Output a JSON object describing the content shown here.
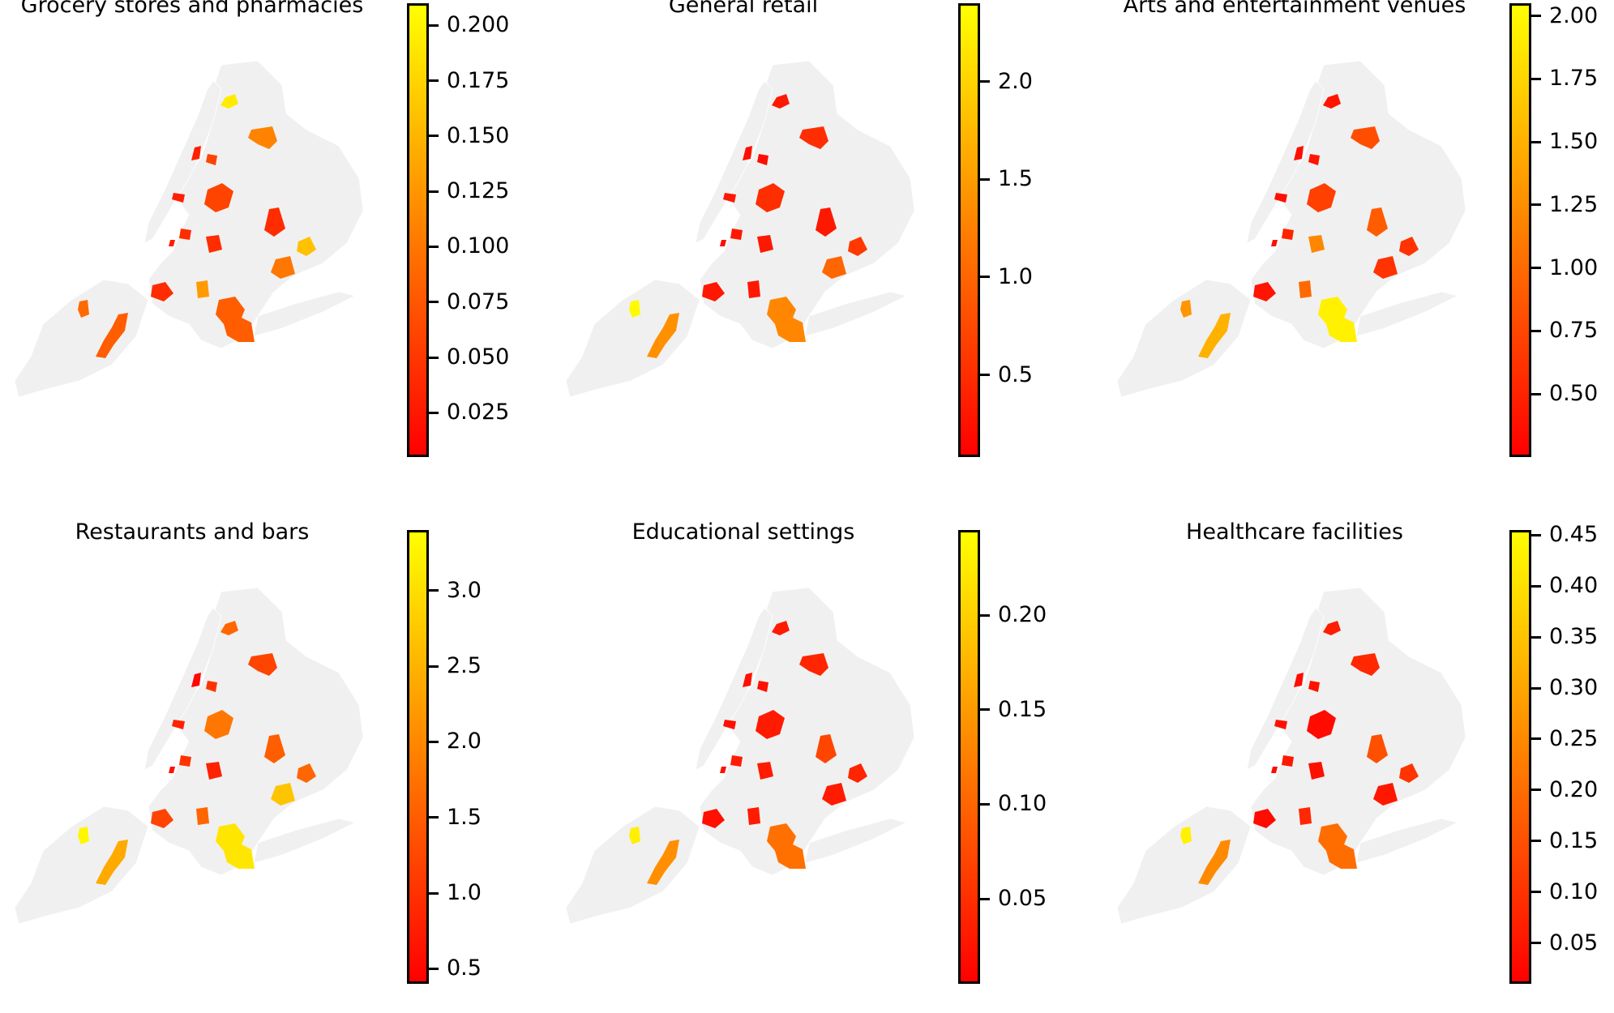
{
  "panels": [
    {
      "title": "Grocery stores and pharmacies",
      "colorbar": {
        "min": 0.005,
        "max": 0.21,
        "ticks": [
          "0.025",
          "0.050",
          "0.075",
          "0.100",
          "0.125",
          "0.150",
          "0.175",
          "0.200"
        ]
      },
      "neighborhoods": [
        {
          "id": "bronx-north",
          "value": 0.195
        },
        {
          "id": "bronx-east",
          "value": 0.11
        },
        {
          "id": "manhattan-upper-w",
          "value": 0.03
        },
        {
          "id": "manhattan-upper-e",
          "value": 0.06
        },
        {
          "id": "manhattan-mid",
          "value": 0.03
        },
        {
          "id": "manhattan-low",
          "value": 0.04
        },
        {
          "id": "queens-west",
          "value": 0.06
        },
        {
          "id": "queens-central",
          "value": 0.04
        },
        {
          "id": "queens-east",
          "value": 0.04
        },
        {
          "id": "queens-southeast",
          "value": 0.16
        },
        {
          "id": "queens-south",
          "value": 0.1
        },
        {
          "id": "brooklyn-nw",
          "value": 0.04
        },
        {
          "id": "brooklyn-central",
          "value": 0.13
        },
        {
          "id": "brooklyn-south",
          "value": 0.08
        },
        {
          "id": "staten-north",
          "value": 0.09
        },
        {
          "id": "staten-east",
          "value": 0.08
        },
        {
          "id": "manhattan-lower-tip",
          "value": 0.03
        }
      ]
    },
    {
      "title": "General retail",
      "colorbar": {
        "min": 0.08,
        "max": 2.4,
        "ticks": [
          "0.5",
          "1.0",
          "1.5",
          "2.0"
        ]
      },
      "neighborhoods": [
        {
          "id": "bronx-north",
          "value": 0.3
        },
        {
          "id": "bronx-east",
          "value": 0.5
        },
        {
          "id": "manhattan-upper-w",
          "value": 0.2
        },
        {
          "id": "manhattan-upper-e",
          "value": 0.2
        },
        {
          "id": "manhattan-mid",
          "value": 0.3
        },
        {
          "id": "manhattan-low",
          "value": 0.3
        },
        {
          "id": "queens-west",
          "value": 0.5
        },
        {
          "id": "queens-central",
          "value": 0.3
        },
        {
          "id": "queens-east",
          "value": 0.3
        },
        {
          "id": "queens-southeast",
          "value": 0.6
        },
        {
          "id": "queens-south",
          "value": 1.0
        },
        {
          "id": "brooklyn-nw",
          "value": 0.3
        },
        {
          "id": "brooklyn-central",
          "value": 0.3
        },
        {
          "id": "brooklyn-south",
          "value": 1.3
        },
        {
          "id": "staten-north",
          "value": 2.35
        },
        {
          "id": "staten-east",
          "value": 1.4
        },
        {
          "id": "manhattan-lower-tip",
          "value": 0.2
        }
      ]
    },
    {
      "title": "Arts and entertainment venues",
      "colorbar": {
        "min": 0.25,
        "max": 2.05,
        "ticks": [
          "0.50",
          "0.75",
          "1.00",
          "1.25",
          "1.50",
          "1.75",
          "2.00"
        ]
      },
      "neighborhoods": [
        {
          "id": "bronx-north",
          "value": 0.4
        },
        {
          "id": "bronx-east",
          "value": 0.8
        },
        {
          "id": "manhattan-upper-w",
          "value": 0.35
        },
        {
          "id": "manhattan-upper-e",
          "value": 0.4
        },
        {
          "id": "manhattan-mid",
          "value": 0.35
        },
        {
          "id": "manhattan-low",
          "value": 0.5
        },
        {
          "id": "queens-west",
          "value": 0.7
        },
        {
          "id": "queens-central",
          "value": 1.2
        },
        {
          "id": "queens-east",
          "value": 0.9
        },
        {
          "id": "queens-southeast",
          "value": 0.6
        },
        {
          "id": "queens-south",
          "value": 0.6
        },
        {
          "id": "brooklyn-nw",
          "value": 0.4
        },
        {
          "id": "brooklyn-central",
          "value": 1.0
        },
        {
          "id": "brooklyn-south",
          "value": 1.95
        },
        {
          "id": "staten-north",
          "value": 1.3
        },
        {
          "id": "staten-east",
          "value": 1.5
        },
        {
          "id": "manhattan-lower-tip",
          "value": 0.35
        }
      ]
    },
    {
      "title": "Restaurants and bars",
      "colorbar": {
        "min": 0.4,
        "max": 3.4,
        "ticks": [
          "0.5",
          "1.0",
          "1.5",
          "2.0",
          "2.5",
          "3.0"
        ]
      },
      "neighborhoods": [
        {
          "id": "bronx-north",
          "value": 1.6
        },
        {
          "id": "bronx-east",
          "value": 1.2
        },
        {
          "id": "manhattan-upper-w",
          "value": 0.5
        },
        {
          "id": "manhattan-upper-e",
          "value": 1.0
        },
        {
          "id": "manhattan-mid",
          "value": 0.8
        },
        {
          "id": "manhattan-low",
          "value": 1.0
        },
        {
          "id": "queens-west",
          "value": 1.8
        },
        {
          "id": "queens-central",
          "value": 0.8
        },
        {
          "id": "queens-east",
          "value": 1.5
        },
        {
          "id": "queens-southeast",
          "value": 1.6
        },
        {
          "id": "queens-south",
          "value": 2.7
        },
        {
          "id": "brooklyn-nw",
          "value": 1.2
        },
        {
          "id": "brooklyn-central",
          "value": 1.6
        },
        {
          "id": "brooklyn-south",
          "value": 3.1
        },
        {
          "id": "staten-north",
          "value": 3.3
        },
        {
          "id": "staten-east",
          "value": 2.4
        },
        {
          "id": "manhattan-lower-tip",
          "value": 0.6
        }
      ]
    },
    {
      "title": "Educational settings",
      "colorbar": {
        "min": 0.005,
        "max": 0.245,
        "ticks": [
          "0.05",
          "0.10",
          "0.15",
          "0.20"
        ]
      },
      "neighborhoods": [
        {
          "id": "bronx-north",
          "value": 0.03
        },
        {
          "id": "bronx-east",
          "value": 0.04
        },
        {
          "id": "manhattan-upper-w",
          "value": 0.02
        },
        {
          "id": "manhattan-upper-e",
          "value": 0.02
        },
        {
          "id": "manhattan-mid",
          "value": 0.02
        },
        {
          "id": "manhattan-low",
          "value": 0.03
        },
        {
          "id": "queens-west",
          "value": 0.03
        },
        {
          "id": "queens-central",
          "value": 0.03
        },
        {
          "id": "queens-east",
          "value": 0.07
        },
        {
          "id": "queens-southeast",
          "value": 0.04
        },
        {
          "id": "queens-south",
          "value": 0.03
        },
        {
          "id": "brooklyn-nw",
          "value": 0.02
        },
        {
          "id": "brooklyn-central",
          "value": 0.03
        },
        {
          "id": "brooklyn-south",
          "value": 0.11
        },
        {
          "id": "staten-north",
          "value": 0.23
        },
        {
          "id": "staten-east",
          "value": 0.14
        },
        {
          "id": "manhattan-lower-tip",
          "value": 0.02
        }
      ]
    },
    {
      "title": "Healthcare facilities",
      "colorbar": {
        "min": 0.01,
        "max": 0.455,
        "ticks": [
          "0.05",
          "0.10",
          "0.15",
          "0.20",
          "0.25",
          "0.30",
          "0.35",
          "0.40",
          "0.45"
        ]
      },
      "neighborhoods": [
        {
          "id": "bronx-north",
          "value": 0.06
        },
        {
          "id": "bronx-east",
          "value": 0.08
        },
        {
          "id": "manhattan-upper-w",
          "value": 0.03
        },
        {
          "id": "manhattan-upper-e",
          "value": 0.04
        },
        {
          "id": "manhattan-mid",
          "value": 0.04
        },
        {
          "id": "manhattan-low",
          "value": 0.05
        },
        {
          "id": "queens-west",
          "value": 0.03
        },
        {
          "id": "queens-central",
          "value": 0.04
        },
        {
          "id": "queens-east",
          "value": 0.15
        },
        {
          "id": "queens-southeast",
          "value": 0.1
        },
        {
          "id": "queens-south",
          "value": 0.05
        },
        {
          "id": "brooklyn-nw",
          "value": 0.03
        },
        {
          "id": "brooklyn-central",
          "value": 0.08
        },
        {
          "id": "brooklyn-south",
          "value": 0.2
        },
        {
          "id": "staten-north",
          "value": 0.43
        },
        {
          "id": "staten-east",
          "value": 0.25
        },
        {
          "id": "manhattan-lower-tip",
          "value": 0.03
        }
      ]
    }
  ]
}
